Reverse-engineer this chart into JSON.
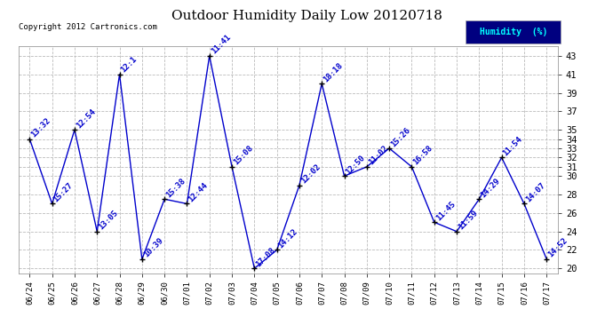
{
  "title": "Outdoor Humidity Daily Low 20120718",
  "copyright": "Copyright 2012 Cartronics.com",
  "legend_label": "Humidity  (%)",
  "x_labels": [
    "06/24",
    "06/25",
    "06/26",
    "06/27",
    "06/28",
    "06/29",
    "06/30",
    "07/01",
    "07/02",
    "07/03",
    "07/04",
    "07/05",
    "07/06",
    "07/07",
    "07/08",
    "07/09",
    "07/10",
    "07/11",
    "07/12",
    "07/13",
    "07/14",
    "07/15",
    "07/16",
    "07/17"
  ],
  "y_values": [
    34,
    27,
    35,
    24,
    41,
    21,
    27.5,
    27,
    43,
    31,
    20,
    22,
    29,
    40,
    30,
    31,
    33,
    31,
    25,
    24,
    27.5,
    32,
    27,
    21
  ],
  "point_labels": [
    "13:32",
    "15:27",
    "12:54",
    "13:05",
    "12:1",
    "10:39",
    "15:38",
    "12:44",
    "11:41",
    "15:08",
    "17:08",
    "14:12",
    "12:02",
    "18:18",
    "12:50",
    "11:02",
    "15:26",
    "16:58",
    "11:45",
    "11:59",
    "14:29",
    "11:54",
    "14:07",
    "14:52"
  ],
  "line_color": "#0000cc",
  "marker_color": "#000000",
  "background_color": "#ffffff",
  "plot_bg_color": "#ffffff",
  "grid_color": "#bbbbbb",
  "ylim": [
    19.5,
    44
  ],
  "yticks": [
    20,
    22,
    24,
    26,
    28,
    30,
    31,
    32,
    33,
    34,
    35,
    37,
    39,
    41,
    43
  ],
  "legend_bg": "#000080",
  "legend_text_color": "#00ffff",
  "title_color": "#000000",
  "label_color": "#0000cc",
  "label_fontsize": 6.5,
  "title_fontsize": 11,
  "copyright_fontsize": 6.5
}
